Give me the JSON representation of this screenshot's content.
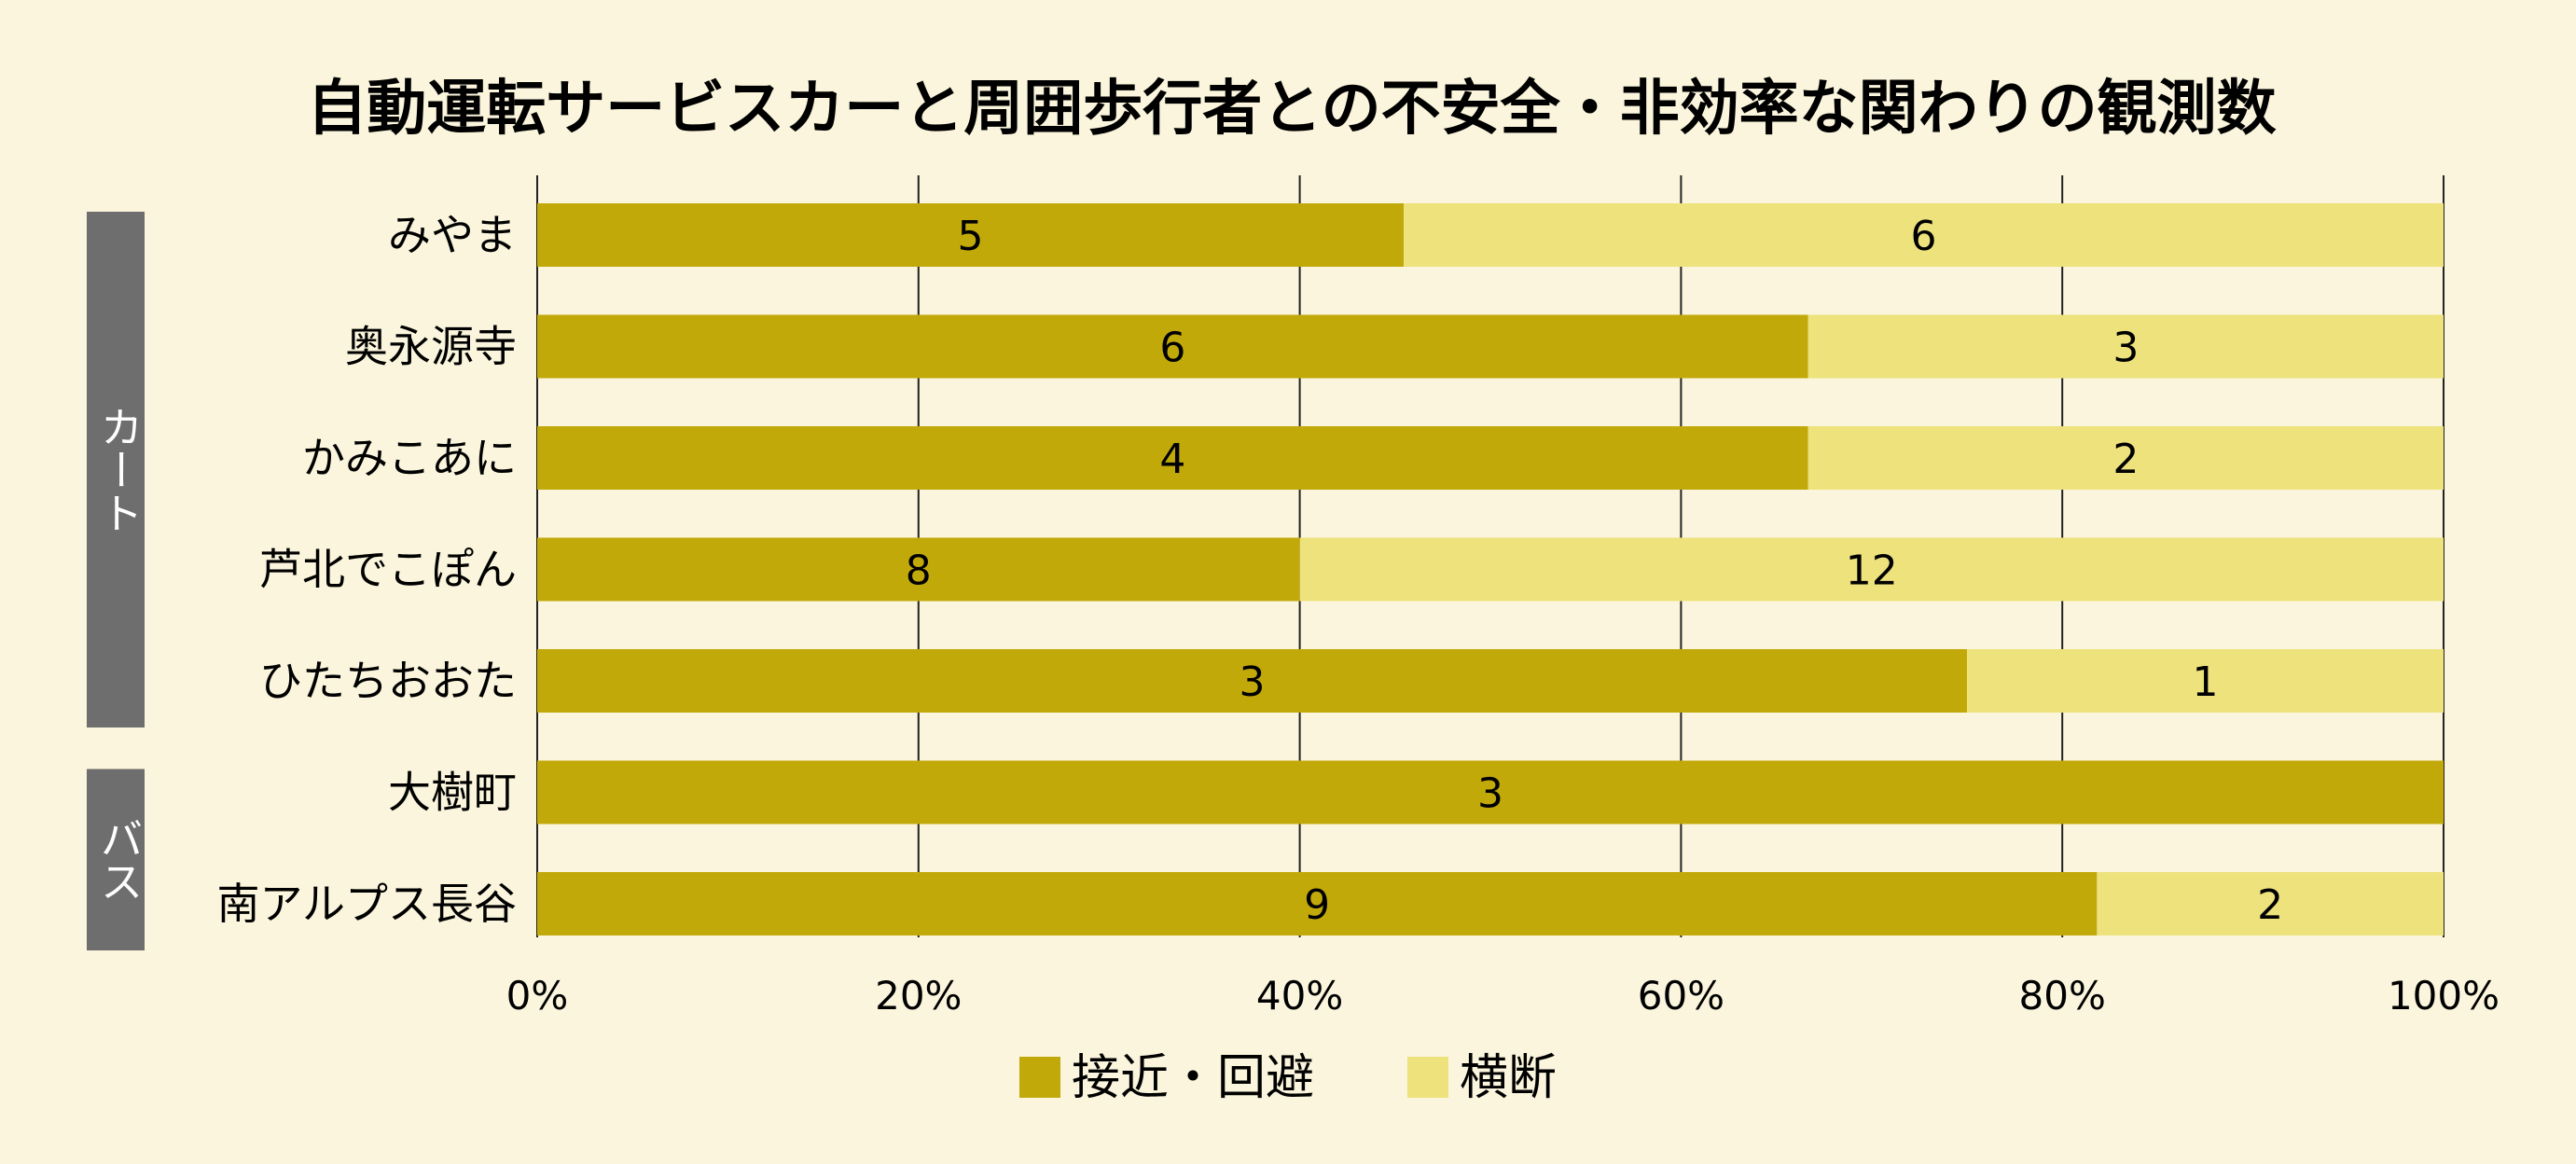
{
  "chart_data": {
    "type": "bar",
    "orientation": "horizontal",
    "stacked": true,
    "normalized": true,
    "title": "自動運転サービスカーと周囲歩行者との不安全・非効率な関わりの観測数",
    "categories": [
      "みやま",
      "奥永源寺",
      "かみこあに",
      "芦北でこぽん",
      "ひたちおおた",
      "大樹町",
      "南アルプス長谷"
    ],
    "groups": [
      {
        "label": "カート",
        "categories": [
          "みやま",
          "奥永源寺",
          "かみこあに",
          "芦北でこぽん",
          "ひたちおおた"
        ]
      },
      {
        "label": "バス",
        "categories": [
          "大樹町",
          "南アルプス長谷"
        ]
      }
    ],
    "series": [
      {
        "name": "接近・回避",
        "color": "#c2a90a",
        "values": [
          5,
          6,
          4,
          8,
          3,
          3,
          9
        ]
      },
      {
        "name": "横断",
        "color": "#ede27c",
        "values": [
          6,
          3,
          2,
          12,
          1,
          0,
          2
        ]
      }
    ],
    "x_ticks": [
      "0%",
      "20%",
      "40%",
      "60%",
      "80%",
      "100%"
    ],
    "xlim": [
      0,
      100
    ],
    "grid": "vertical",
    "legend_position": "bottom-center"
  }
}
